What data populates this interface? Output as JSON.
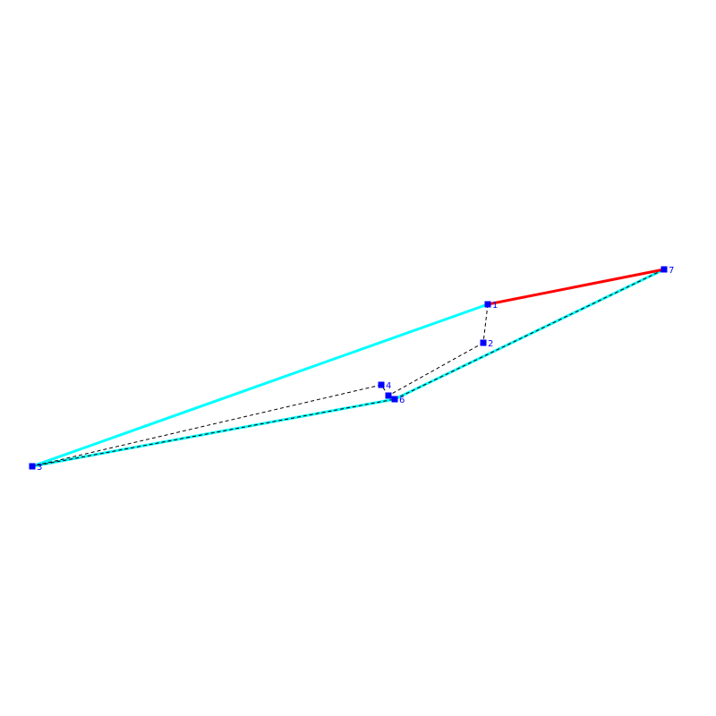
{
  "colors": {
    "background": "#ffffff",
    "point": "#0000ff",
    "label": "#0000ff",
    "hull_edge": "#00ffff",
    "highlight_edge": "#ff0000",
    "path_edge": "#000000"
  },
  "points": [
    {
      "id": "1",
      "label": "1"
    },
    {
      "id": "2",
      "label": "2"
    },
    {
      "id": "3",
      "label": "3"
    },
    {
      "id": "4",
      "label": "4"
    },
    {
      "id": "5",
      "label": ""
    },
    {
      "id": "6",
      "label": "6"
    },
    {
      "id": "7",
      "label": "7"
    }
  ],
  "hull_edges": [
    {
      "from": "1",
      "to": "3"
    },
    {
      "from": "3",
      "to": "6"
    },
    {
      "from": "6",
      "to": "7"
    }
  ],
  "highlight_edges": [
    {
      "from": "1",
      "to": "7"
    }
  ],
  "path_edges": [
    {
      "from": "1",
      "to": "2"
    },
    {
      "from": "2",
      "to": "5"
    },
    {
      "from": "5",
      "to": "4"
    },
    {
      "from": "4",
      "to": "3"
    },
    {
      "from": "3",
      "to": "6"
    },
    {
      "from": "6",
      "to": "7"
    }
  ]
}
